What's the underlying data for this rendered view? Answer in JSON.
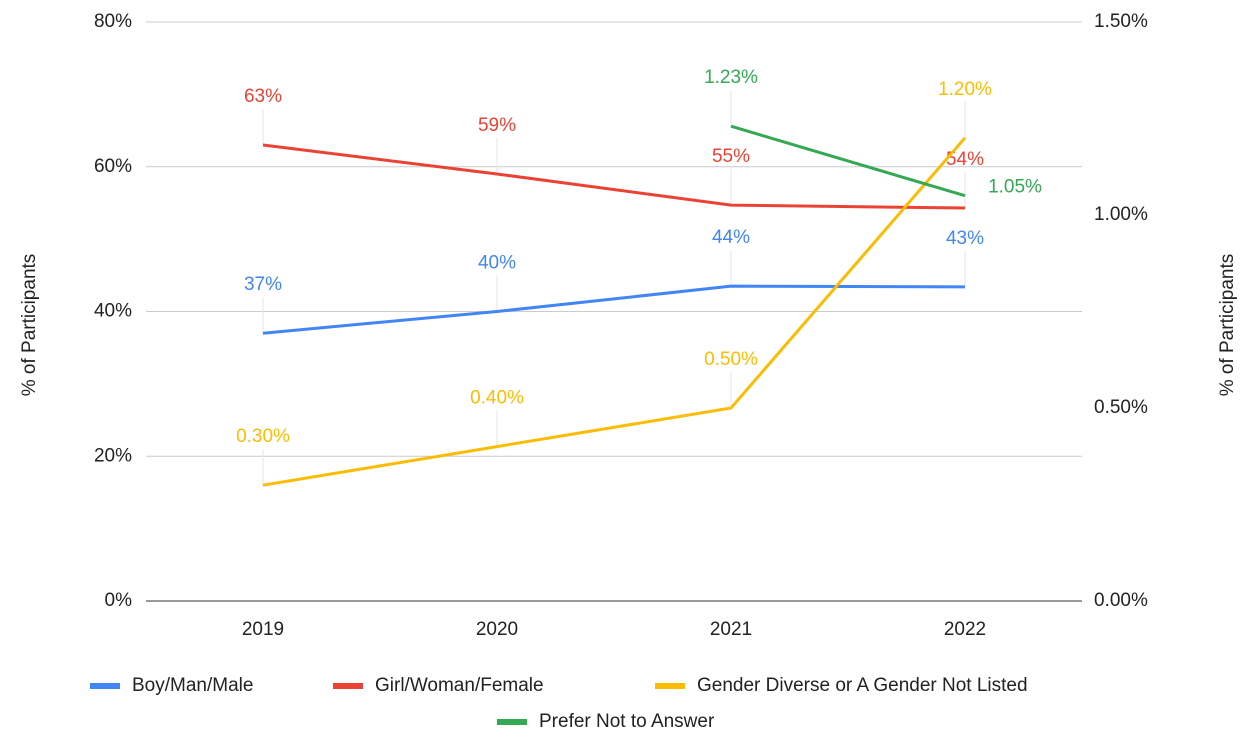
{
  "chart_data": {
    "type": "line",
    "y_label": "% of Participants",
    "y2_label": "% of Participants",
    "categories": [
      "2019",
      "2020",
      "2021",
      "2022"
    ],
    "ylim": [
      0,
      80
    ],
    "yticks": [
      {
        "value": 0,
        "label": "0%"
      },
      {
        "value": 20,
        "label": "20%"
      },
      {
        "value": 40,
        "label": "40%"
      },
      {
        "value": 60,
        "label": "60%"
      },
      {
        "value": 80,
        "label": "80%"
      }
    ],
    "y2lim": [
      0,
      1.5
    ],
    "y2ticks": [
      {
        "value": 0,
        "label": "0.00%"
      },
      {
        "value": 0.5,
        "label": "0.50%"
      },
      {
        "value": 1.0,
        "label": "1.00%"
      },
      {
        "value": 1.5,
        "label": "1.50%"
      }
    ],
    "grid": true,
    "legend": "bottom",
    "series": [
      {
        "name": "Boy/Man/Male",
        "color": "#4285f4",
        "values": [
          37,
          40,
          43.5,
          43.4
        ],
        "value_labels": [
          "37%",
          "40%",
          "44%",
          "43%"
        ]
      },
      {
        "name": "Girl/Woman/Female",
        "color": "#ea4335",
        "values": [
          63,
          59,
          54.7,
          54.3
        ],
        "value_labels": [
          "63%",
          "59%",
          "55%",
          "54%"
        ]
      },
      {
        "name": "Gender Diverse or A Gender Not Listed",
        "color": "#fbbc04",
        "axis": "y2",
        "values": [
          0.3,
          0.4,
          0.5,
          1.2
        ],
        "value_labels": [
          "0.30%",
          "0.40%",
          "0.50%",
          "1.20%"
        ]
      },
      {
        "name": "Prefer Not to Answer",
        "color": "#34a853",
        "axis": "y2",
        "values": [
          null,
          null,
          1.23,
          1.05
        ],
        "value_labels": [
          null,
          null,
          "1.23%",
          "1.05%"
        ]
      }
    ]
  }
}
